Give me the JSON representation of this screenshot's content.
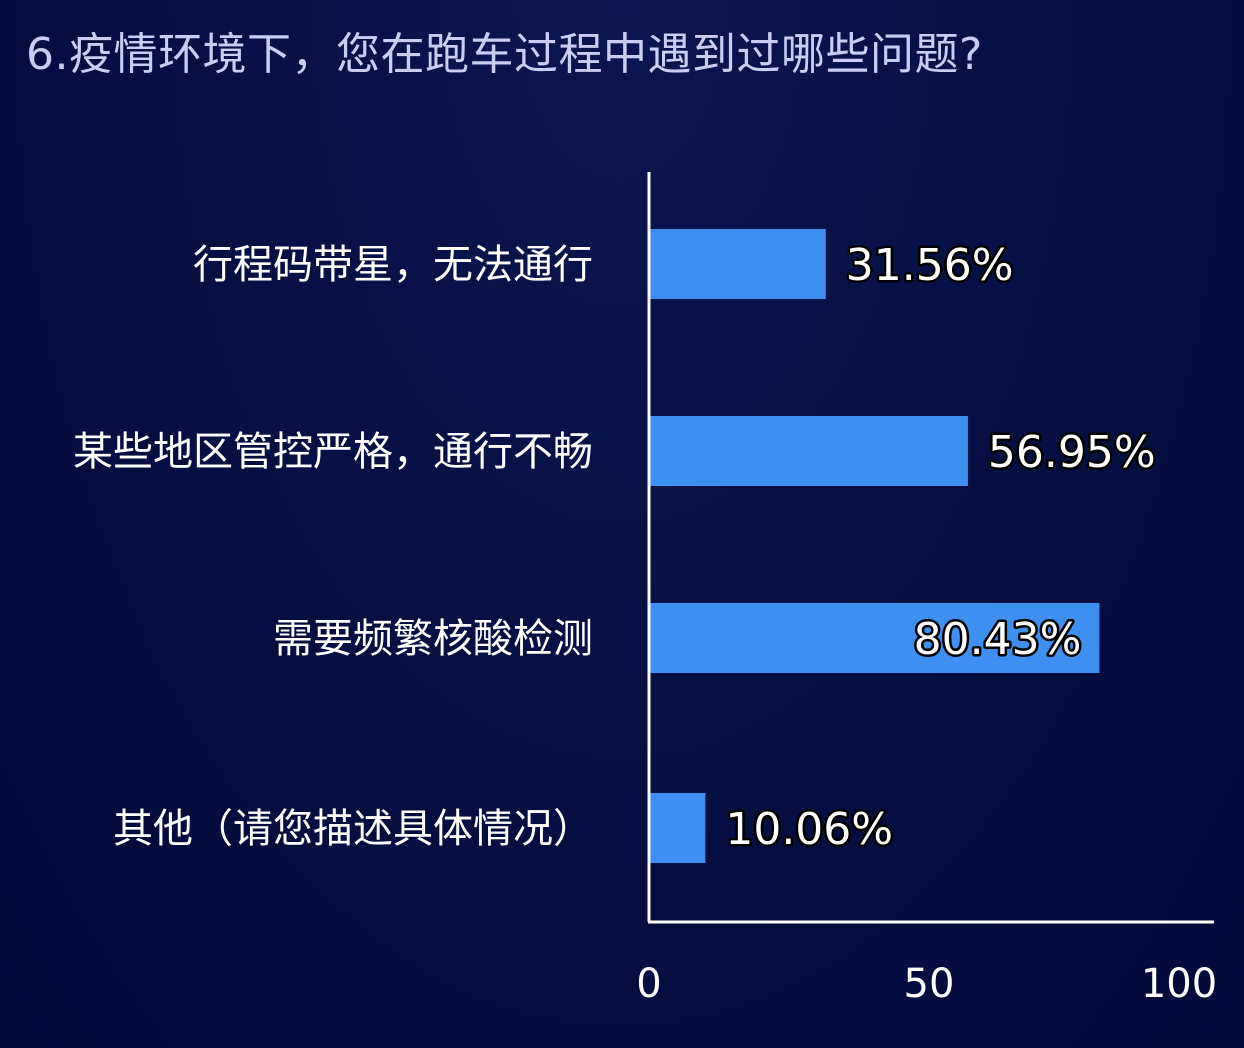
{
  "chart_data": {
    "type": "bar",
    "orientation": "horizontal",
    "title": "6.疫情环境下，您在跑车过程中遇到过哪些问题?",
    "categories": [
      "行程码带星，无法通行",
      "某些地区管控严格，通行不畅",
      "需要频繁核酸检测",
      "其他（请您描述具体情况）"
    ],
    "values": [
      31.56,
      56.95,
      80.43,
      10.06
    ],
    "value_labels": [
      "31.56%",
      "56.95%",
      "80.43%",
      "10.06%"
    ],
    "xlim": [
      0,
      100
    ],
    "xticks": [
      0,
      50,
      100
    ],
    "xtick_labels": [
      "0",
      "50",
      "100"
    ],
    "grid": false,
    "legend": "none",
    "bar_color": "#3d8ff0",
    "background_color": "#061044"
  }
}
